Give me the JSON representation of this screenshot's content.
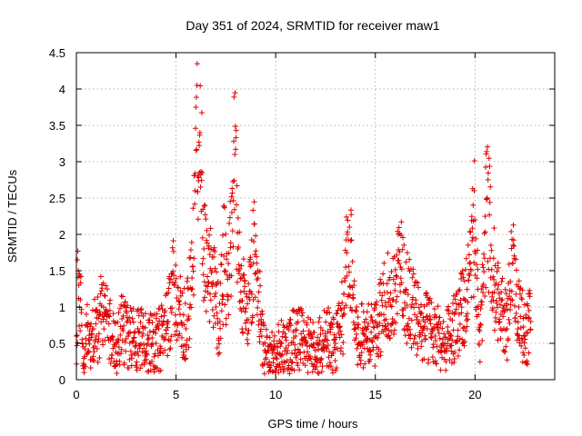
{
  "chart_data": {
    "type": "scatter",
    "title": "Day 351 of 2024, SRMTID for receiver maw1",
    "xlabel": "GPS time / hours",
    "ylabel": "SRMTID / TECUs",
    "xlim": [
      0,
      24
    ],
    "ylim": [
      0,
      4.5
    ],
    "xticks": [
      0,
      5,
      10,
      15,
      20
    ],
    "xtick_labels": [
      "0",
      "5",
      "10",
      "15",
      "20"
    ],
    "yticks": [
      0,
      0.5,
      1,
      1.5,
      2,
      2.5,
      3,
      3.5,
      4,
      4.5
    ],
    "ytick_labels": [
      "0",
      "0.5",
      "1",
      "1.5",
      "2",
      "2.5",
      "3",
      "3.5",
      "4",
      "4.5"
    ],
    "grid": true,
    "marker": "plus",
    "color": "#e00000",
    "series": [
      {
        "name": "maw1",
        "description": "Dense scatter of SRMTID samples roughly every 30 s from 0 to ~22.8 h",
        "x": [
          0.0,
          0.1,
          0.2,
          0.3,
          0.4,
          0.5,
          0.6,
          0.8,
          1.0,
          1.2,
          1.5,
          1.8,
          2.0,
          2.3,
          2.6,
          3.0,
          3.3,
          3.6,
          4.0,
          4.3,
          4.6,
          4.9,
          5.2,
          5.5,
          5.8,
          5.95,
          6.05,
          6.1,
          6.2,
          6.4,
          6.6,
          6.8,
          7.0,
          7.2,
          7.4,
          7.6,
          7.8,
          7.95,
          8.1,
          8.3,
          8.5,
          8.7,
          8.9,
          9.1,
          9.3,
          9.6,
          10.0,
          10.3,
          10.6,
          11.0,
          11.5,
          12.0,
          12.5,
          13.0,
          13.4,
          13.7,
          14.0,
          14.5,
          15.0,
          15.3,
          15.6,
          15.9,
          16.2,
          16.5,
          16.8,
          17.2,
          17.6,
          18.0,
          18.4,
          18.8,
          19.2,
          19.5,
          19.8,
          20.0,
          20.2,
          20.4,
          20.6,
          20.8,
          21.0,
          21.3,
          21.6,
          21.9,
          22.2,
          22.5,
          22.8
        ],
        "y": [
          0.6,
          1.5,
          1.1,
          0.5,
          0.2,
          0.9,
          0.4,
          0.7,
          0.6,
          0.9,
          0.8,
          0.6,
          0.5,
          0.7,
          0.6,
          0.5,
          0.6,
          0.5,
          0.5,
          0.6,
          0.8,
          1.3,
          0.9,
          0.7,
          1.4,
          2.6,
          4.05,
          2.8,
          3.4,
          1.8,
          1.2,
          1.5,
          1.0,
          0.8,
          1.7,
          1.1,
          2.3,
          3.1,
          1.8,
          1.4,
          0.7,
          1.1,
          1.9,
          1.5,
          0.6,
          0.4,
          0.3,
          0.5,
          0.4,
          0.6,
          0.5,
          0.4,
          0.6,
          0.5,
          0.9,
          2.1,
          0.7,
          0.6,
          0.6,
          0.9,
          1.2,
          1.1,
          1.6,
          1.2,
          1.0,
          0.8,
          0.7,
          0.6,
          0.5,
          0.6,
          0.9,
          1.1,
          1.5,
          2.2,
          0.5,
          1.2,
          2.5,
          1.85,
          1.3,
          0.9,
          0.7,
          1.6,
          1.0,
          0.6,
          0.8
        ]
      }
    ]
  }
}
